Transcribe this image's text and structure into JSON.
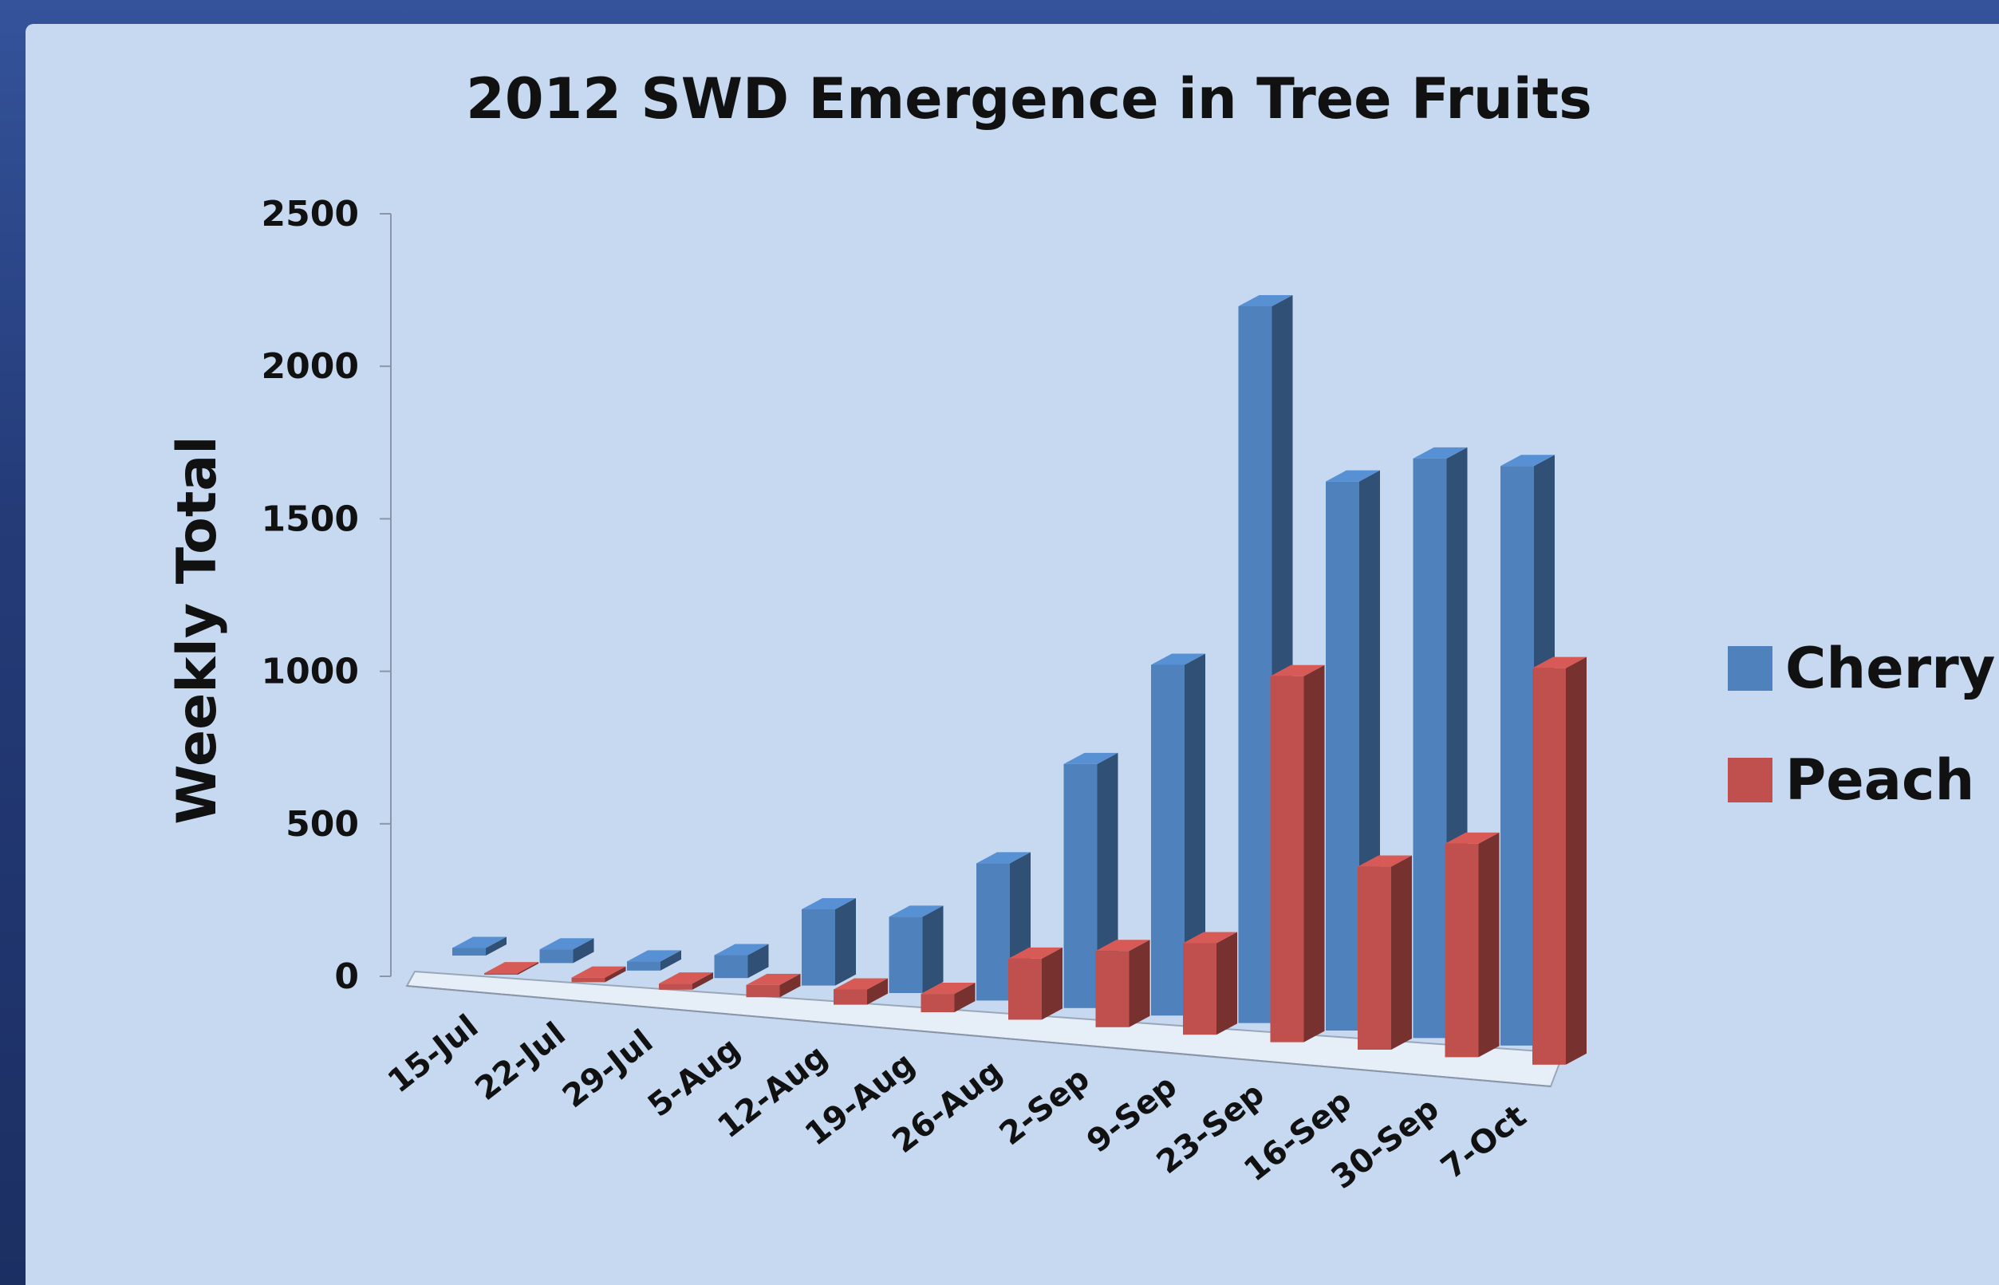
{
  "chart_data": {
    "type": "bar",
    "title": "2012 SWD Emergence in Tree Fruits",
    "ylabel": "Weekly Total",
    "xlabel": "",
    "ylim": [
      0,
      2500
    ],
    "yticks": [
      0,
      500,
      1000,
      1500,
      2000,
      2500
    ],
    "categories": [
      "15-Jul",
      "22-Jul",
      "29-Jul",
      "5-Aug",
      "12-Aug",
      "19-Aug",
      "26-Aug",
      "2-Sep",
      "9-Sep",
      "23-Sep",
      "16-Sep",
      "30-Sep",
      "7-Oct"
    ],
    "series": [
      {
        "name": "Cherry",
        "color": "#4f81bd",
        "values": [
          25,
          45,
          30,
          75,
          250,
          250,
          450,
          800,
          1150,
          2350,
          1800,
          1900,
          1900
        ]
      },
      {
        "name": "Peach",
        "color": "#c0504d",
        "values": [
          5,
          15,
          20,
          40,
          50,
          60,
          200,
          250,
          300,
          1200,
          600,
          700,
          1300
        ]
      }
    ],
    "legend_position": "right",
    "grid": false,
    "style": "3d-columns"
  }
}
